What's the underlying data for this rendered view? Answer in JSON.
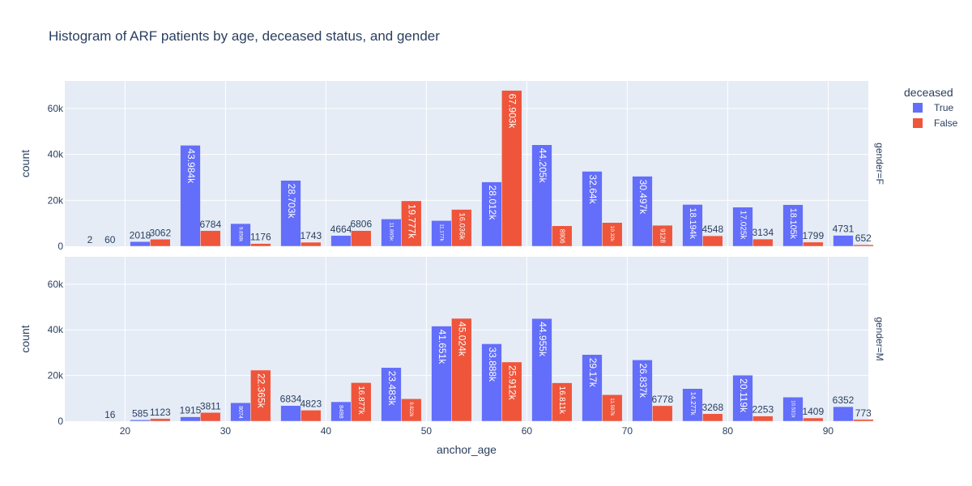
{
  "chart_data": {
    "type": "bar",
    "title": "Histogram of ARF patients by age, deceased status, and gender",
    "xlabel": "anchor_age",
    "ylabel": "count",
    "x_ticks": [
      20,
      30,
      40,
      50,
      60,
      70,
      80,
      90
    ],
    "y_ticks": [
      0,
      20000,
      40000,
      60000
    ],
    "y_tick_labels": [
      "0",
      "20k",
      "40k",
      "60k"
    ],
    "xlim": [
      14,
      94
    ],
    "ylim": [
      0,
      72000
    ],
    "bin_start": 15,
    "bin_width": 5,
    "legend": {
      "title": "deceased",
      "placement": "top-right",
      "items": [
        {
          "label": "True",
          "color": "#636efa"
        },
        {
          "label": "False",
          "color": "#ef553b"
        }
      ]
    },
    "facets": [
      {
        "label": "gender=F",
        "series": [
          {
            "name": "True",
            "color": "#636efa",
            "values": [
              2,
              2018,
              43984,
              9858,
              28703,
              4664,
              11865,
              11177,
              28012,
              44205,
              32640,
              30497,
              18194,
              17025,
              18105,
              4731
            ],
            "labels": [
              "2",
              "2018",
              "43.984k",
              "9.858k",
              "28.703k",
              "4664",
              "11.865k",
              "11.177k",
              "28.012k",
              "44.205k",
              "32.64k",
              "30.497k",
              "18.194k",
              "17.025k",
              "18.105k",
              "4731"
            ]
          },
          {
            "name": "False",
            "color": "#ef553b",
            "values": [
              60,
              3062,
              6784,
              1176,
              1743,
              6806,
              19777,
              16036,
              67903,
              8906,
              10320,
              9128,
              4548,
              3134,
              1799,
              652
            ],
            "labels": [
              "60",
              "3062",
              "6784",
              "1176",
              "1743",
              "6806",
              "19.777k",
              "16.036k",
              "67.903k",
              "8906",
              "10.32k",
              "9128",
              "4548",
              "3134",
              "1799",
              "652"
            ]
          }
        ]
      },
      {
        "label": "gender=M",
        "series": [
          {
            "name": "True",
            "color": "#636efa",
            "values": [
              0,
              585,
              1915,
              8074,
              6834,
              8498,
              23483,
              41651,
              33888,
              44955,
              29170,
              26837,
              14277,
              20119,
              10531,
              6352
            ],
            "labels": [
              "",
              "585",
              "1915",
              "8074",
              "6834",
              "8498",
              "23.483k",
              "41.651k",
              "33.888k",
              "44.955k",
              "29.17k",
              "26.837k",
              "14.277k",
              "20.119k",
              "10.531k",
              "6352"
            ]
          },
          {
            "name": "False",
            "color": "#ef553b",
            "values": [
              16,
              1123,
              3811,
              22365,
              4823,
              16877,
              9822,
              45024,
              25912,
              16811,
              11597,
              6778,
              3268,
              2253,
              1409,
              773
            ],
            "labels": [
              "16",
              "1123",
              "3811",
              "22.365k",
              "4823",
              "16.877k",
              "9.822k",
              "45.024k",
              "25.912k",
              "16.811k",
              "11.597k",
              "6778",
              "3268",
              "2253",
              "1409",
              "773"
            ]
          }
        ]
      }
    ]
  }
}
